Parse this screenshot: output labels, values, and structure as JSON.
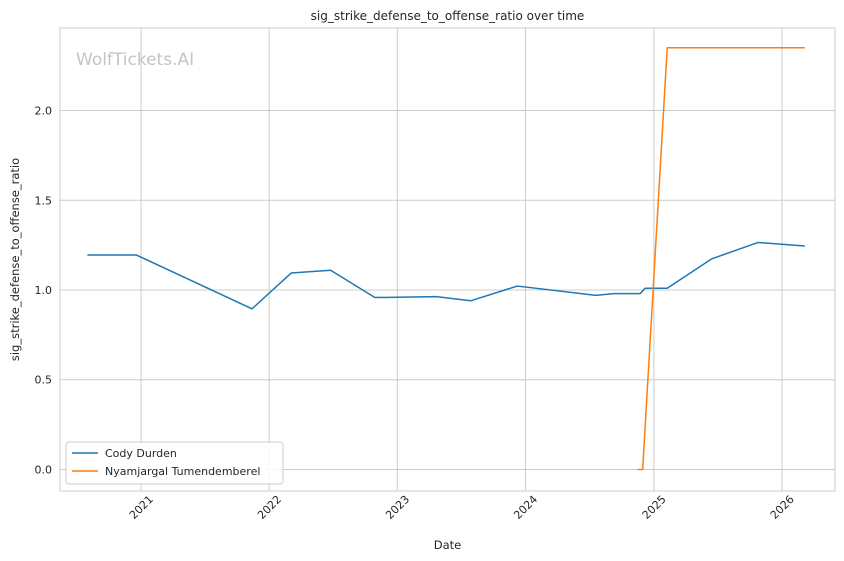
{
  "chart_data": {
    "type": "line",
    "title": "sig_strike_defense_to_offense_ratio over time",
    "xlabel": "Date",
    "ylabel": "sig_strike_defense_to_offense_ratio",
    "watermark": "WolfTickets.AI",
    "xlim": [
      "2020-05-15",
      "2026-06-01"
    ],
    "ylim": [
      -0.12,
      2.46
    ],
    "x_ticks": [
      "2021",
      "2022",
      "2023",
      "2024",
      "2025",
      "2026"
    ],
    "y_ticks": [
      "0.0",
      "0.5",
      "1.0",
      "1.5",
      "2.0"
    ],
    "grid": true,
    "legend_position": "lower-left",
    "series": [
      {
        "name": "Cody Durden",
        "color": "#1f77b4",
        "points": [
          [
            "2020-08-01",
            1.195
          ],
          [
            "2020-12-19",
            1.195
          ],
          [
            "2021-11-13",
            0.895
          ],
          [
            "2022-03-05",
            1.095
          ],
          [
            "2022-06-25",
            1.11
          ],
          [
            "2022-10-29",
            0.958
          ],
          [
            "2023-04-22",
            0.963
          ],
          [
            "2023-07-29",
            0.94
          ],
          [
            "2023-12-09",
            1.022
          ],
          [
            "2024-07-20",
            0.97
          ],
          [
            "2024-09-07",
            0.98
          ],
          [
            "2024-11-23",
            0.98
          ],
          [
            "2024-12-07",
            1.01
          ],
          [
            "2025-02-08",
            1.01
          ],
          [
            "2025-06-14",
            1.173
          ],
          [
            "2025-10-25",
            1.265
          ],
          [
            "2026-03-07",
            1.245
          ]
        ]
      },
      {
        "name": "Nyamjargal Tumendemberel",
        "color": "#ff7f0e",
        "points": [
          [
            "2024-11-16",
            0.0
          ],
          [
            "2024-11-30",
            0.0
          ],
          [
            "2025-02-08",
            2.35
          ],
          [
            "2026-03-07",
            2.35
          ]
        ]
      }
    ]
  }
}
